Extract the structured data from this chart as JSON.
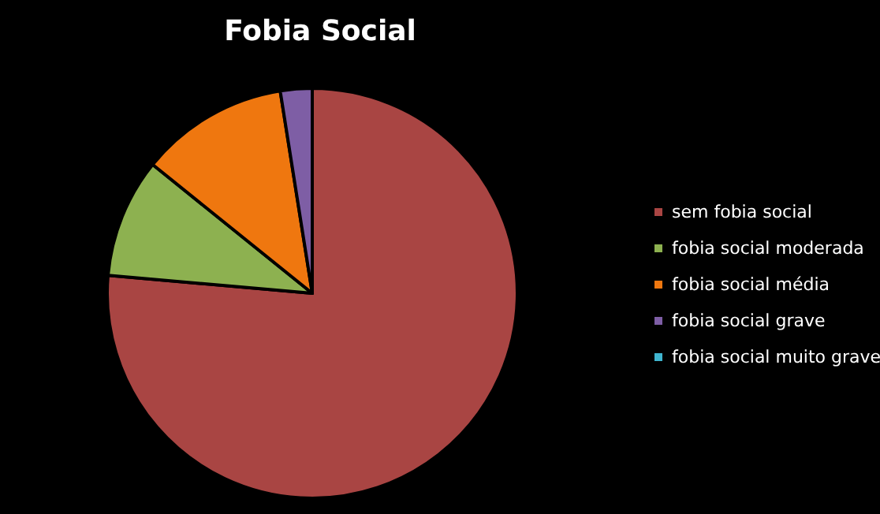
{
  "chart_data": {
    "type": "pie",
    "title": "Fobia Social",
    "categories": [
      "sem fobia social",
      "fobia social moderada",
      "fobia social média",
      "fobia social grave",
      "fobia social muito grave"
    ],
    "values": [
      76.4,
      9.4,
      11.7,
      2.5,
      0
    ],
    "colors": [
      "#a94543",
      "#8db150",
      "#ef770f",
      "#7e5ea5",
      "#3fb5cf"
    ],
    "legend": "right"
  }
}
